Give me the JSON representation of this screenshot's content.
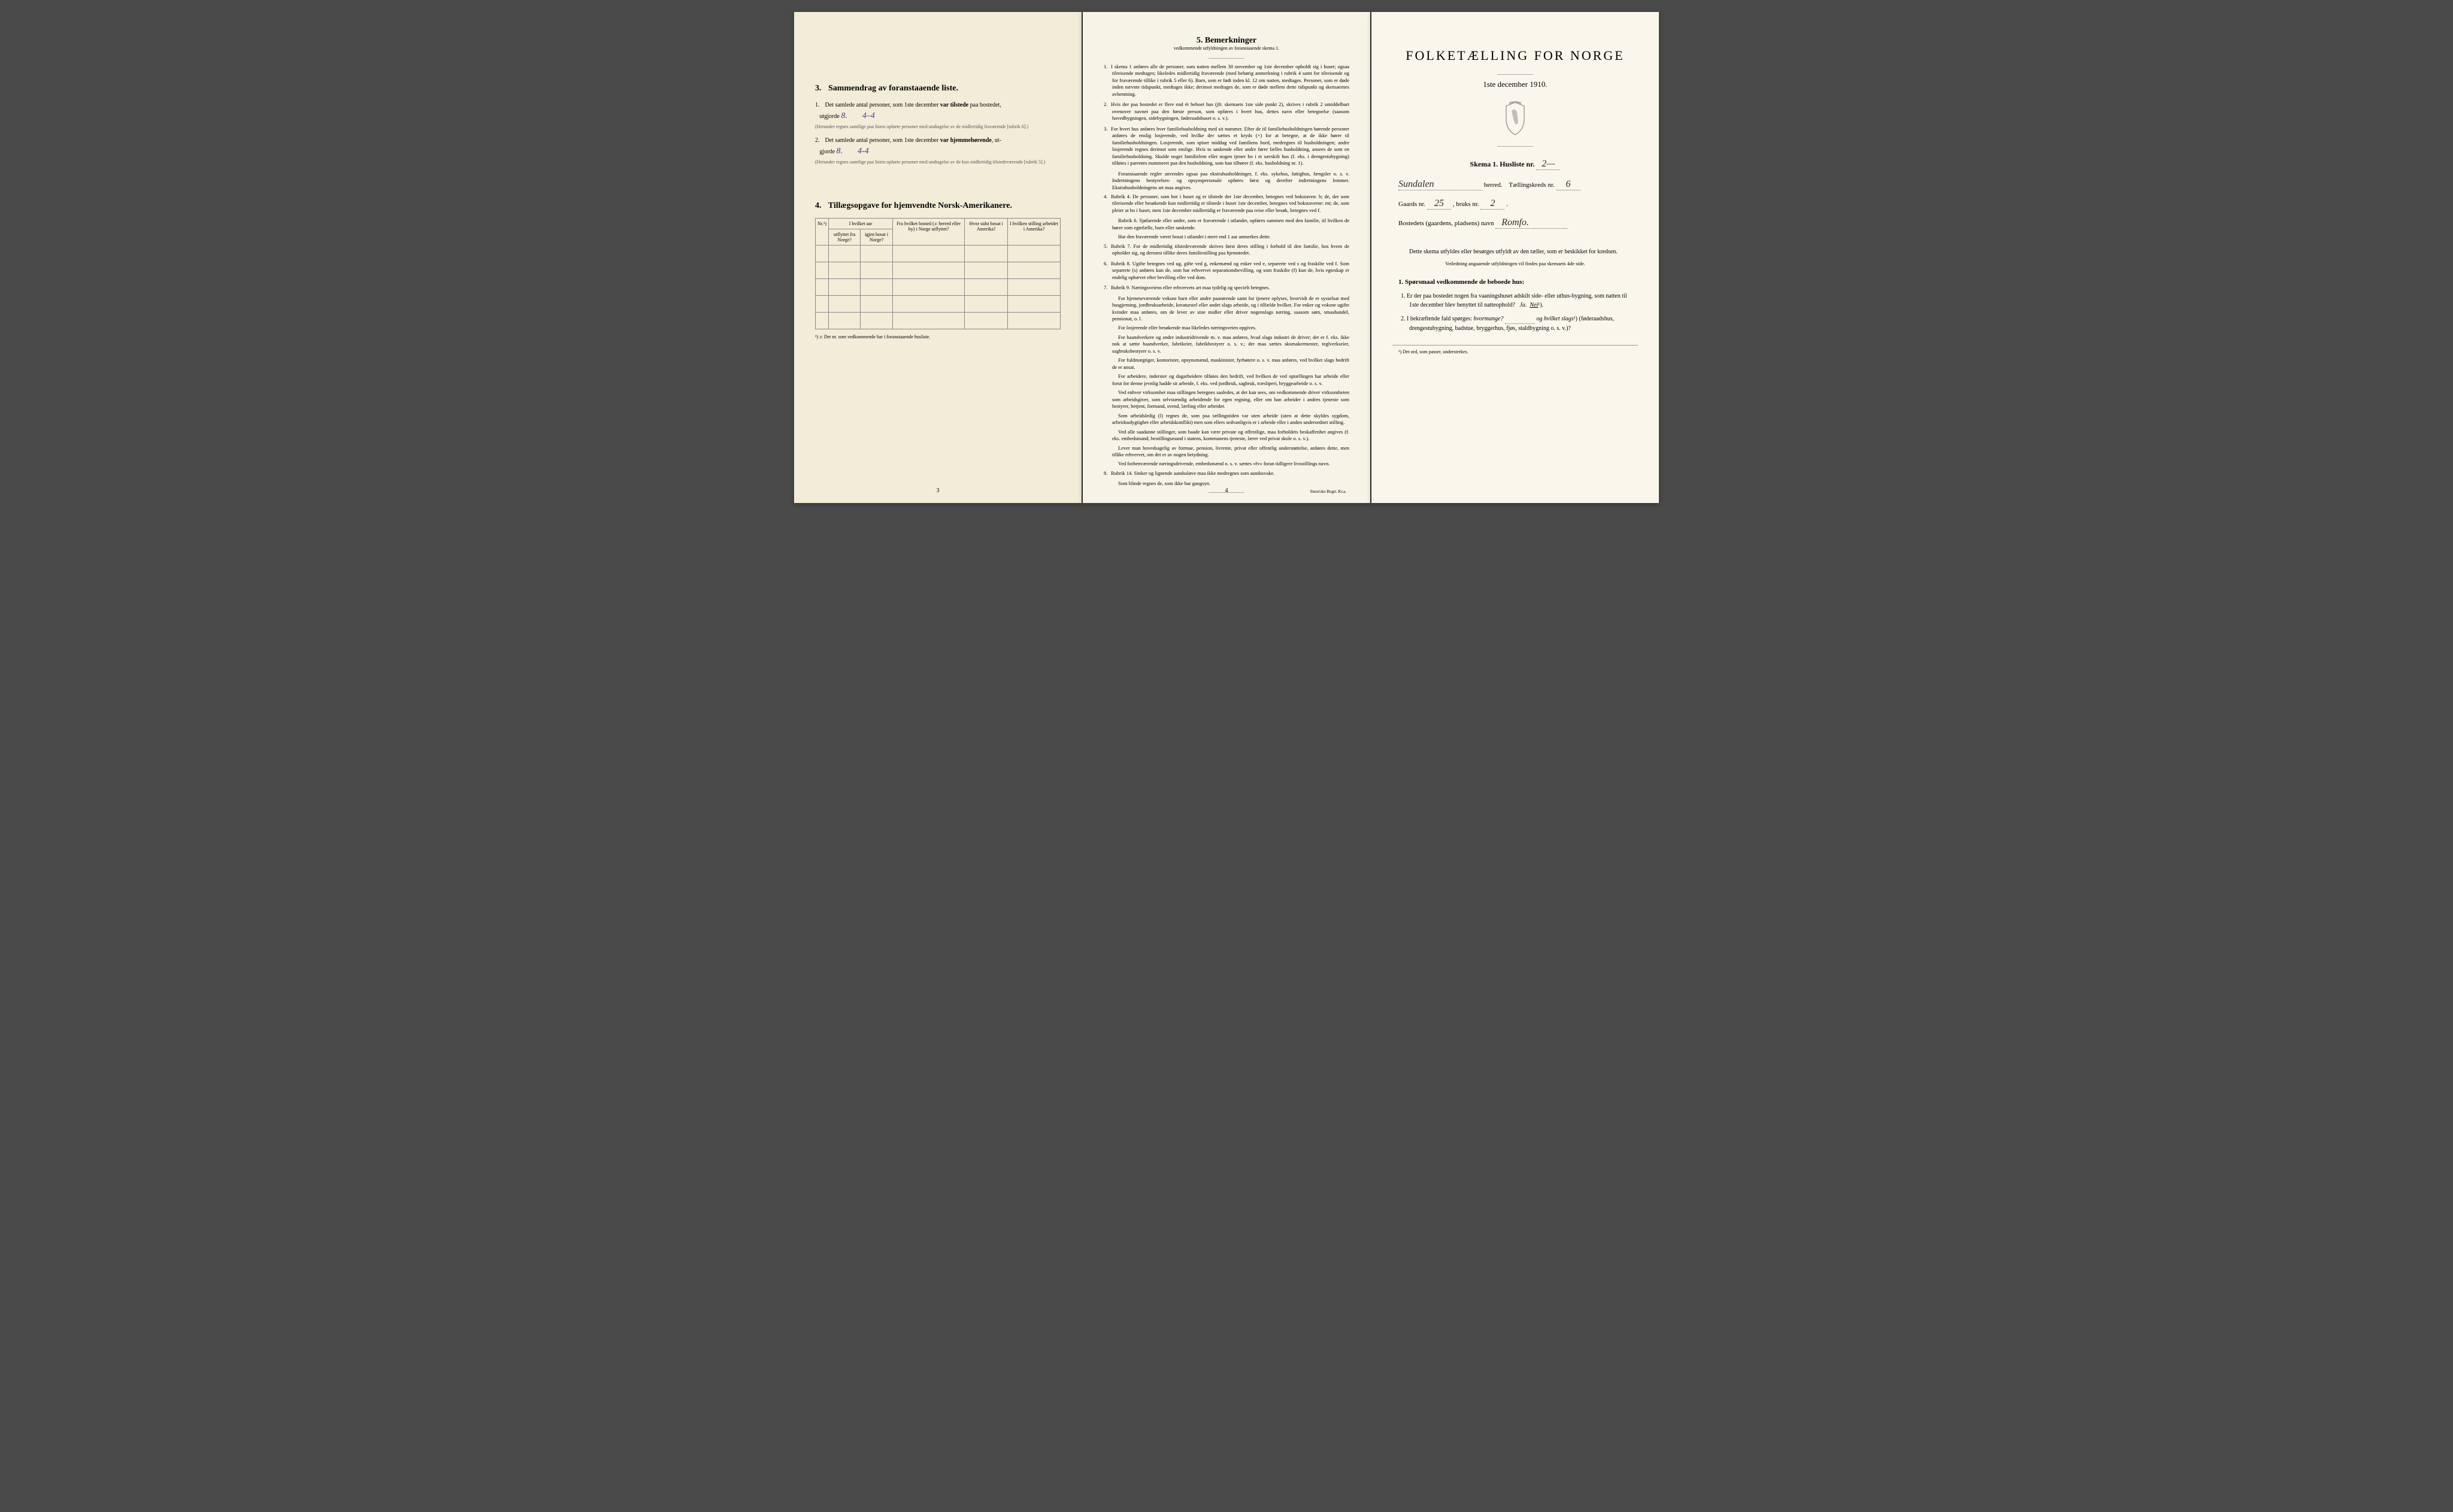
{
  "page1": {
    "section3": {
      "num": "3.",
      "title": "Sammendrag av foranstaaende liste.",
      "item1_prefix": "1.",
      "item1_text_a": "Det samlede antal personer, som 1ste december",
      "item1_bold": "var tilstede",
      "item1_text_b": "paa bostedet,",
      "item1_utgjorde": "utgjorde",
      "item1_val1": "8.",
      "item1_val2": "4–4",
      "item1_note": "(Herunder regnes samtlige paa listen opførte personer med undtagelse av de midlertidig fraværende [rubrik 6].)",
      "item2_prefix": "2.",
      "item2_text_a": "Det samlede antal personer, som 1ste december",
      "item2_bold": "var hjemmehørende",
      "item2_text_b": ", ut-",
      "item2_gjorde": "gjorde",
      "item2_val1": "8.",
      "item2_val2": "4-4",
      "item2_note": "(Herunder regnes samtlige paa listen opførte personer med undtagelse av de kun midlertidig tilstedeværende [rubrik 5].)"
    },
    "section4": {
      "num": "4.",
      "title": "Tillægsopgave for hjemvendte Norsk-Amerikanere.",
      "headers": {
        "nr": "Nr.¹)",
        "aar_group": "I hvilket aar",
        "utflyttet": "utflyttet fra Norge?",
        "igjen": "igjen bosat i Norge?",
        "fra_bosted": "Fra hvilket bosted (ɔ: herred eller by) i Norge utflyttet?",
        "hvor_sidst": "Hvor sidst bosat i Amerika?",
        "stilling": "I hvilken stilling arbeidet i Amerika?"
      },
      "footnote": "¹) ɔ: Det nr. som vedkommende har i foranstaaende husliste."
    },
    "page_num": "3"
  },
  "page2": {
    "title_num": "5.",
    "title": "Bemerkninger",
    "subtitle": "vedkommende utfyldningen av foranstaaende skema 1.",
    "items": [
      {
        "n": "1.",
        "text": "I skema 1 anføres alle de personer, som natten mellem 30 november og 1ste december opholdt sig i huset; ogsaa tilreisende medtages; likeledes midlertidig fraværende (med behørig anmerkning i rubrik 4 samt for tilreisende og for fraværende tillike i rubrik 5 eller 6). Barn, som er født inden kl. 12 om natten, medtages. Personer, som er døde inden nævnte tidspunkt, medtages ikke; derimot medtages de, som er døde mellem dette tidspunkt og skemaernes avhentning."
      },
      {
        "n": "2.",
        "text": "Hvis der paa bostedet er flere end ét beboet hus (jfr. skemaets 1ste side punkt 2), skrives i rubrik 2 umiddelbart ovenover navnet paa den første person, som opføres i hvert hus, dettes navn eller betegnelse (saasom hovedbygningen, sidebygningen, føderaadshuset o. s. v.)."
      },
      {
        "n": "3.",
        "text": "For hvert hus anføres hver familiehusholdning med sit nummer. Efter de til familiehusholdningen hørende personer anføres de enslig losjerende, ved hvilke der sættes et kryds (×) for at betegne, at de ikke hører til familiehusholdningen. Losjerende, som spiser middag ved familiens bord, medregnes til husholdningen; andre losjerende regnes derimot som enslige. Hvis to søskende eller andre fører fælles husholdning, ansees de som en familiehusholdning. Skulde noget familielem eller nogen tjener bo i et særskilt hus (f. eks. i drengestubygning) tilføies i parentes nummeret paa den husholdning, som han tilhører (f. eks. husholdning nr. 1)."
      },
      {
        "n": "",
        "text": "Foranstaaende regler anvendes ogsaa paa ekstrahusholdninger, f. eks. sykehus, fattighus, fængsler o. s. v. Indretningens bestyrelses- og opsynspersonale opføres først og derefter indretningens lemmer. Ekstrahusholdningens art maa angives."
      },
      {
        "n": "4.",
        "text": "Rubrik 4. De personer, som bor i huset og er tilstede der 1ste december, betegnes ved bokstaven: b; de, der som tilreisende eller besøkende kun midlertidig er tilstede i huset 1ste december, betegnes ved bokstaverne: mt; de, som pleier at bo i huset, men 1ste december midlertidig er fraværende paa reise eller besøk, betegnes ved f."
      },
      {
        "n": "",
        "text": "Rubrik 6. Sjøfarende eller andre, som er fraværende i utlandet, opføres sammen med den familie, til hvilken de hører som egtefælle, barn eller søskende."
      },
      {
        "n": "",
        "text": "Har den fraværende været bosat i utlandet i mere end 1 aar anmerkes dette."
      },
      {
        "n": "5.",
        "text": "Rubrik 7. For de midlertidig tilstedeværende skrives først deres stilling i forhold til den familie, hos hvem de opholder sig, og dernæst tillike deres familiestilling paa hjemstedet."
      },
      {
        "n": "6.",
        "text": "Rubrik 8. Ugifte betegnes ved ug, gifte ved g, enkemænd og enker ved e, separerte ved s og fraskilte ved f. Som separerte (s) anføres kun de, som har erhvervet separationsbevilling, og som fraskilte (f) kun de, hvis egteskap er endelig ophævet efter bevilling eller ved dom."
      },
      {
        "n": "7.",
        "text": "Rubrik 9. Næringsveiens eller erhvervets art maa tydelig og specielt betegnes."
      },
      {
        "n": "",
        "text": "For hjemmeværende voksne barn eller andre paarørende samt for tjenere oplyses, hvorvidt de er sysselsat med husgjerning, jordbruksarbeide, kreaturstel eller andet slags arbeide, og i tilfælde hvilket. For enker og voksne ugifte kvinder maa anføres, om de lever av sine midler eller driver nogenslags næring, saasom søm, smaahandel, pensionat, o. l."
      },
      {
        "n": "",
        "text": "For losjerende eller besøkende maa likeledes næringsveien opgives."
      },
      {
        "n": "",
        "text": "For haandverkere og andre industridrivende m. v. maa anføres, hvad slags industri de driver; det er f. eks. ikke nok at sætte haandverker, fabrikeier, fabrikbestyrer o. s. v.; der maa sættes skomakermester, teglverkseier, sagbruksbestyrer o. s. v."
      },
      {
        "n": "",
        "text": "For fuldmægtiger, kontorister, opsynsmænd, maskinister, fyrbøtere o. s. v. maa anføres, ved hvilket slags bedrift de er ansat."
      },
      {
        "n": "",
        "text": "For arbeidere, inderster og dagarbeidere tilføies den bedrift, ved hvilken de ved optællingen har arbeide eller forut for denne jevnlig hadde sit arbeide, f. eks. ved jordbruk, sagbruk, træsliperi, bryggearbeide o. s. v."
      },
      {
        "n": "",
        "text": "Ved enhver virksomhet maa stillingen betegnes saaledes, at det kan sees, om vedkommende driver virksomheten som arbeidsgiver, som selvstændig arbeidende for egen regning, eller om han arbeider i andres tjeneste som bestyrer, betjent, formand, svend, lærling eller arbeider."
      },
      {
        "n": "",
        "text": "Som arbeidsledig (l) regnes de, som paa tællingstiden var uten arbeide (uten at dette skyldes sygdom, arbeidsudygtighet eller arbeidskonflikt) men som ellers sedvanligvis er i arbeide eller i anden underordnet stilling."
      },
      {
        "n": "",
        "text": "Ved alle saadanne stillinger, som baade kan være private og offentlige, maa forholdets beskaffenhet angives (f. eks. embedsmand, bestillingsmand i statens, kommunens tjeneste, lærer ved privat skole o. s. v.)."
      },
      {
        "n": "",
        "text": "Lever man hovedsagelig av formue, pension, livrente, privat eller offentlig understøttelse, anføres dette, men tillike erhvervet, om det er av nogen betydning."
      },
      {
        "n": "",
        "text": "Ved forhenværende næringsdrivende, embedsmænd o. s. v. sættes «fv» foran tidligere livsstillings navn."
      },
      {
        "n": "8.",
        "text": "Rubrik 14. Sinker og lignende aandssløve maa ikke medregnes som aandssvake."
      },
      {
        "n": "",
        "text": "Som blinde regnes de, som ikke har gangsyn."
      }
    ],
    "page_num": "4",
    "printer": "Steen'ske Bogtr. Kr.a."
  },
  "page3": {
    "main_title": "FOLKETÆLLING FOR NORGE",
    "date": "1ste december 1910.",
    "skema_label": "Skema 1.  Husliste nr.",
    "skema_val": "2—",
    "herred_val": "Sundalen",
    "herred_label": "herred.",
    "kreds_label": "Tællingskreds nr.",
    "kreds_val": "6",
    "gaards_label": "Gaards nr.",
    "gaards_val": "25",
    "bruks_label": ", bruks nr.",
    "bruks_val": "2",
    "bosted_label": "Bostedets (gaardens, pladsens) navn",
    "bosted_val": "Romfo.",
    "instruction1": "Dette skema utfyldes eller besørges utfyldt av den tæller, som er beskikket for kredsen.",
    "instruction2": "Veiledning angaaende utfyldningen vil findes paa skemaets 4de side.",
    "q_title_num": "1.",
    "q_title": "Spørsmaal vedkommende de beboede hus:",
    "q1_num": "1.",
    "q1_text": "Er der paa bostedet nogen fra vaaningshuset adskilt side- eller uthus-bygning, som natten til 1ste december blev benyttet til natteophold?",
    "q1_ja": "Ja.",
    "q1_nei": "Nei",
    "q1_sup": "¹).",
    "q2_num": "2.",
    "q2_text_a": "I bekræftende fald spørges:",
    "q2_hvormange": "hvormange?",
    "q2_og": "og",
    "q2_hvilket": "hvilket slags",
    "q2_sup": "¹)",
    "q2_text_b": "(føderaadshus, drengestubygning, badstue, bryggerhus, fjøs, staldbygning o. s. v.)?",
    "footnote": "¹) Det ord, som passer, understrekes."
  }
}
